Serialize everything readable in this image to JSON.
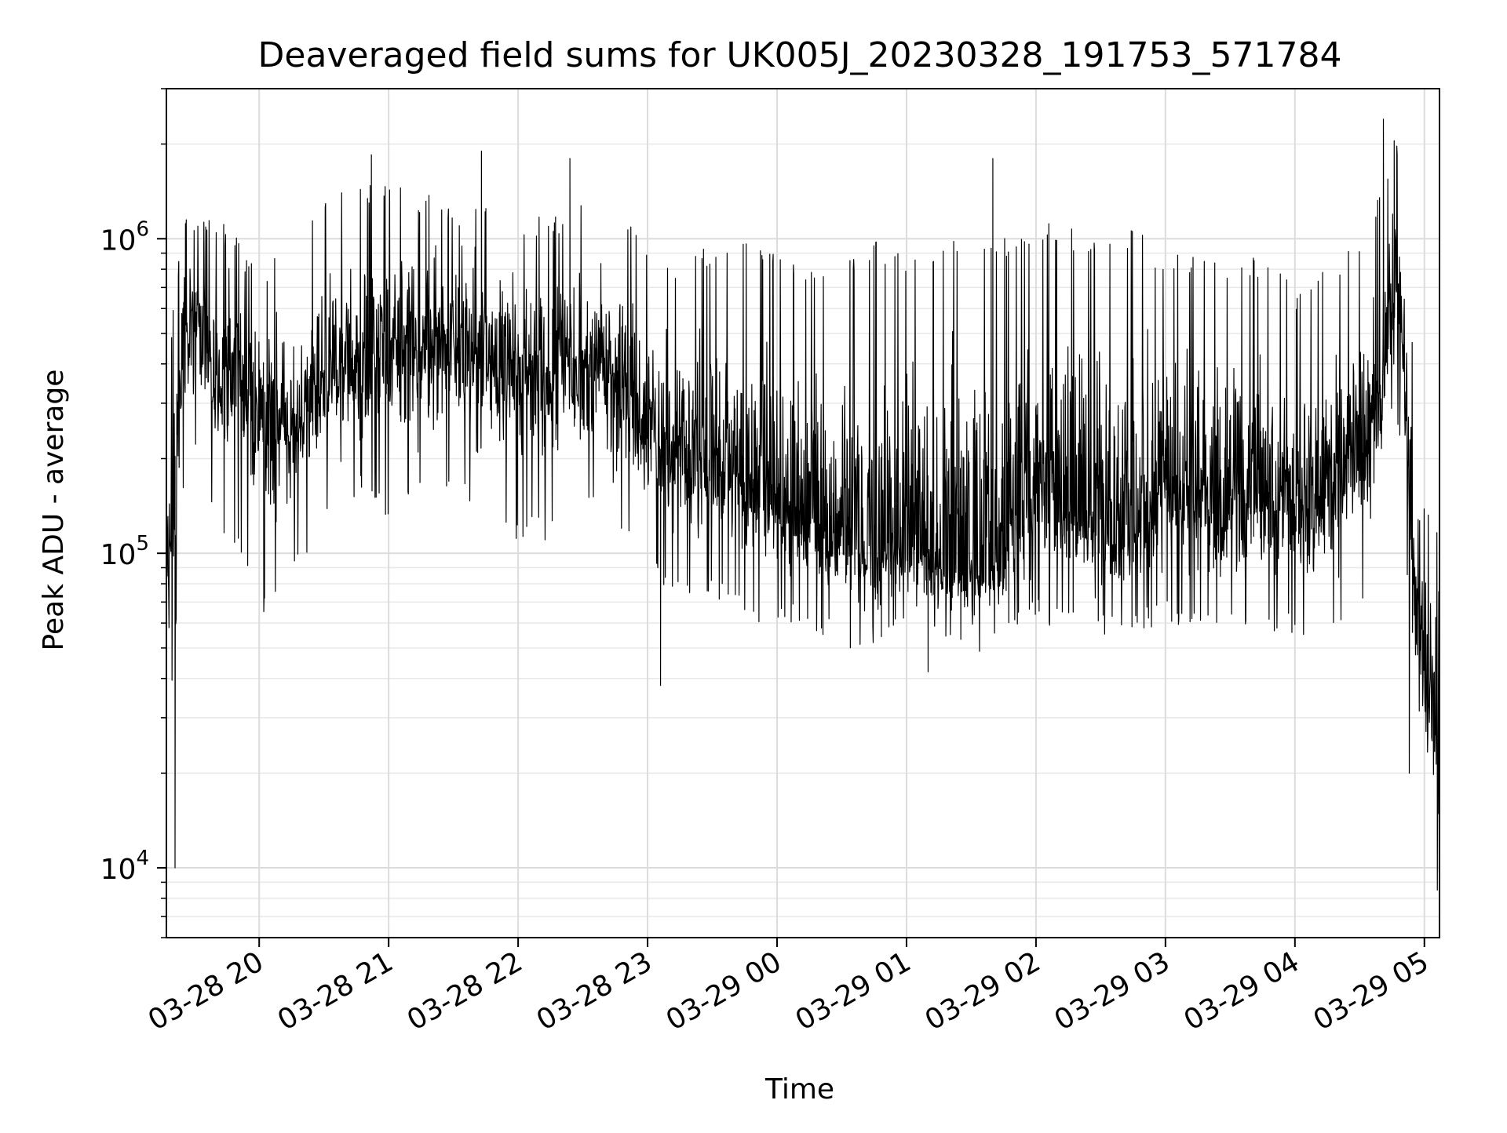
{
  "chart_data": {
    "type": "line",
    "title": "Deaveraged field sums for UK005J_20230328_191753_571784",
    "xlabel": "Time",
    "ylabel": "Peak ADU - average",
    "yscale": "log",
    "xlim": [
      "2023-03-28T19:17",
      "2023-03-29T05:07"
    ],
    "ylim": [
      6000,
      3000000
    ],
    "x_ticks": [
      "03-28 20",
      "03-28 21",
      "03-28 22",
      "03-28 23",
      "03-29 00",
      "03-29 01",
      "03-29 02",
      "03-29 03",
      "03-29 04",
      "03-29 05"
    ],
    "y_ticks": [
      {
        "base": "10",
        "exp": "4",
        "value": 10000
      },
      {
        "base": "10",
        "exp": "5",
        "value": 100000
      },
      {
        "base": "10",
        "exp": "6",
        "value": 1000000
      }
    ],
    "grid": true,
    "line_color": "#000000",
    "series": [
      {
        "x": [
          "2023-03-28T19:17",
          "2023-03-28T19:20",
          "2023-03-28T19:25",
          "2023-03-28T19:30",
          "2023-03-28T19:40",
          "2023-03-28T19:50",
          "2023-03-28T20:00",
          "2023-03-28T20:15",
          "2023-03-28T20:30",
          "2023-03-28T20:45",
          "2023-03-28T21:00",
          "2023-03-28T21:15",
          "2023-03-28T21:30",
          "2023-03-28T21:45",
          "2023-03-28T22:00",
          "2023-03-28T22:15",
          "2023-03-28T22:30",
          "2023-03-28T22:45",
          "2023-03-28T23:00",
          "2023-03-28T23:15",
          "2023-03-28T23:30",
          "2023-03-28T23:45",
          "2023-03-29T00:00",
          "2023-03-29T00:15",
          "2023-03-29T00:30",
          "2023-03-29T00:45",
          "2023-03-29T01:00",
          "2023-03-29T01:15",
          "2023-03-29T01:30",
          "2023-03-29T01:45",
          "2023-03-29T02:00",
          "2023-03-29T02:15",
          "2023-03-29T02:30",
          "2023-03-29T02:45",
          "2023-03-29T03:00",
          "2023-03-29T03:15",
          "2023-03-29T03:30",
          "2023-03-29T03:45",
          "2023-03-29T04:00",
          "2023-03-29T04:10",
          "2023-03-29T04:20",
          "2023-03-29T04:30",
          "2023-03-29T04:40",
          "2023-03-29T04:45",
          "2023-03-29T04:50",
          "2023-03-29T04:55",
          "2023-03-29T05:00",
          "2023-03-29T05:05",
          "2023-03-29T05:07"
        ],
        "y": [
          80000,
          150000,
          500000,
          600000,
          350000,
          400000,
          250000,
          250000,
          350000,
          400000,
          450000,
          500000,
          450000,
          450000,
          400000,
          350000,
          400000,
          350000,
          250000,
          200000,
          200000,
          180000,
          150000,
          130000,
          110000,
          100000,
          110000,
          90000,
          85000,
          90000,
          200000,
          130000,
          120000,
          110000,
          180000,
          160000,
          150000,
          150000,
          140000,
          150000,
          180000,
          200000,
          300000,
          700000,
          500000,
          80000,
          40000,
          30000,
          9000
        ],
        "upper_envelope": [
          200000,
          600000,
          1200000,
          1200000,
          1200000,
          1000000,
          800000,
          1000000,
          1300000,
          1500000,
          1500000,
          1400000,
          1300000,
          1300000,
          1200000,
          1200000,
          1300000,
          1200000,
          1000000,
          800000,
          1000000,
          1000000,
          900000,
          800000,
          900000,
          1000000,
          900000,
          1000000,
          1100000,
          1000000,
          1200000,
          1100000,
          1000000,
          1100000,
          900000,
          900000,
          800000,
          900000,
          700000,
          800000,
          900000,
          1000000,
          1400000,
          2200000,
          1800000,
          400000,
          150000,
          150000,
          80000
        ],
        "lower_envelope": [
          10000,
          40000,
          150000,
          200000,
          120000,
          100000,
          60000,
          80000,
          130000,
          150000,
          130000,
          140000,
          150000,
          120000,
          110000,
          110000,
          130000,
          120000,
          90000,
          70000,
          70000,
          60000,
          60000,
          55000,
          50000,
          50000,
          55000,
          50000,
          45000,
          50000,
          60000,
          55000,
          55000,
          55000,
          60000,
          55000,
          55000,
          55000,
          55000,
          50000,
          60000,
          60000,
          150000,
          250000,
          200000,
          25000,
          20000,
          18000,
          8000
        ],
        "peak_spikes": [
          {
            "x": "2023-03-28T20:52",
            "y": 1850000
          },
          {
            "x": "2023-03-28T21:43",
            "y": 1900000
          },
          {
            "x": "2023-03-28T22:24",
            "y": 1800000
          },
          {
            "x": "2023-03-29T01:40",
            "y": 1800000
          },
          {
            "x": "2023-03-29T04:41",
            "y": 2400000
          },
          {
            "x": "2023-03-29T04:46",
            "y": 2050000
          }
        ],
        "dips": [
          {
            "x": "2023-03-28T19:21",
            "y": 10000
          },
          {
            "x": "2023-03-28T23:06",
            "y": 38000
          },
          {
            "x": "2023-03-29T01:10",
            "y": 42000
          },
          {
            "x": "2023-03-29T04:53",
            "y": 20000
          },
          {
            "x": "2023-03-29T05:06",
            "y": 8500
          }
        ]
      }
    ]
  }
}
